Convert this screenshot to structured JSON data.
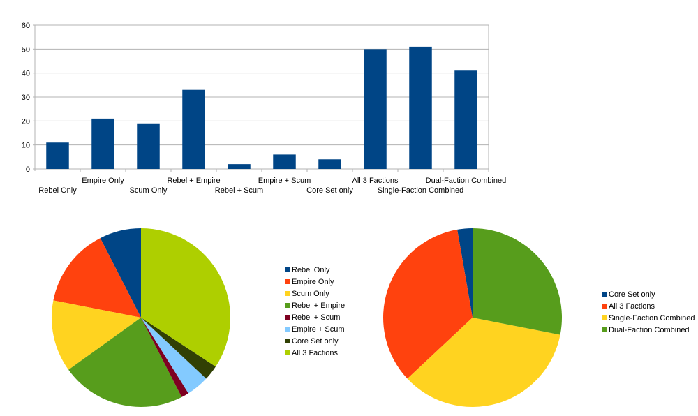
{
  "chart_data": [
    {
      "type": "bar",
      "title": "",
      "xlabel": "",
      "ylabel": "",
      "ylim": [
        0,
        60
      ],
      "yticks": [
        0,
        10,
        20,
        30,
        40,
        50,
        60
      ],
      "grid": true,
      "color": "#004586",
      "categories": [
        "Rebel Only",
        "Empire Only",
        "Scum Only",
        "Rebel + Empire",
        "Rebel + Scum",
        "Empire + Scum",
        "Core Set only",
        "All 3 Factions",
        "Single-Faction Combined",
        "Dual-Faction Combined"
      ],
      "values": [
        11,
        21,
        19,
        33,
        2,
        6,
        4,
        50,
        51,
        41
      ]
    },
    {
      "type": "pie",
      "legend_position": "right",
      "categories": [
        "Rebel Only",
        "Empire Only",
        "Scum Only",
        "Rebel + Empire",
        "Rebel + Scum",
        "Empire + Scum",
        "Core Set only",
        "All 3 Factions"
      ],
      "values": [
        11,
        21,
        19,
        33,
        2,
        6,
        4,
        50
      ],
      "colors": [
        "#004586",
        "#ff420e",
        "#ffd320",
        "#579d1c",
        "#7e0021",
        "#83caff",
        "#314004",
        "#aecf00"
      ]
    },
    {
      "type": "pie",
      "legend_position": "right",
      "categories": [
        "Core Set only",
        "All 3 Factions",
        "Single-Faction Combined",
        "Dual-Faction Combined"
      ],
      "values": [
        4,
        50,
        51,
        41
      ],
      "colors": [
        "#004586",
        "#ff420e",
        "#ffd320",
        "#579d1c"
      ]
    }
  ]
}
